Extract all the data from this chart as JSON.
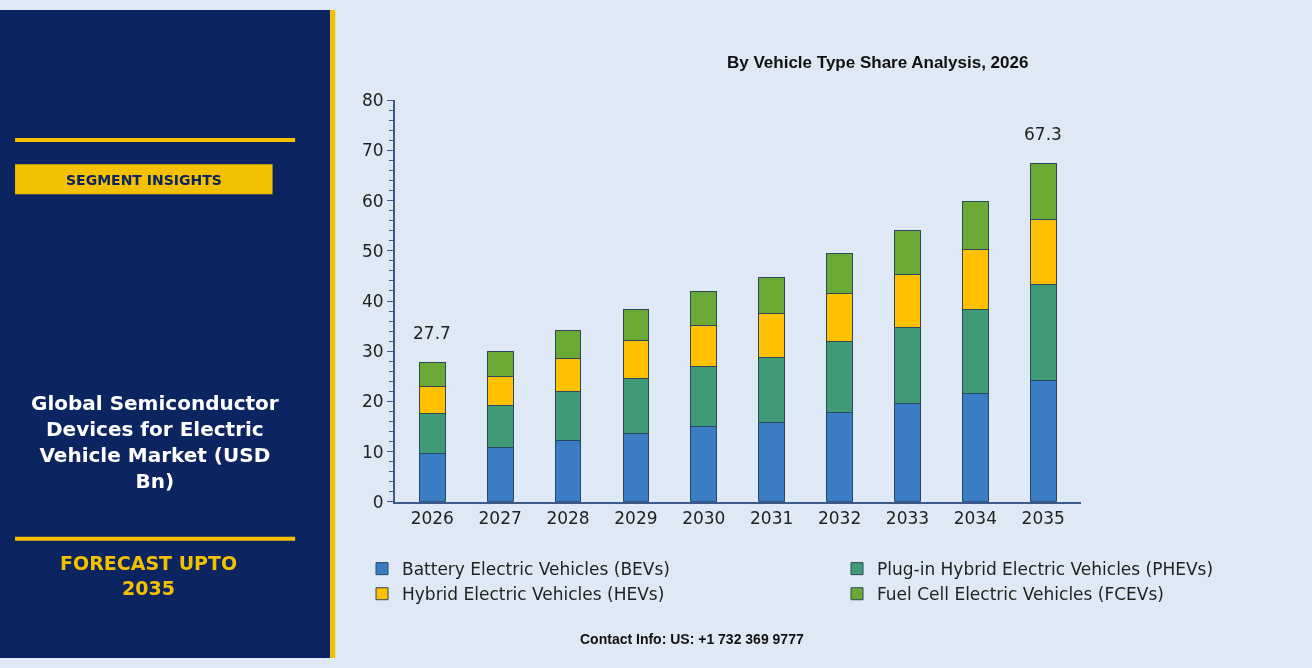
{
  "chart_data": {
    "type": "bar",
    "stacked": true,
    "title": "Global Semiconductor Devices for Electric Vehicle Market (USD Bn)",
    "subtitle": "By Vehicle Type Share Analysis, 2026",
    "annotations": [
      "SEGMENT INSIGHTS",
      "FORECAST UPTO 2035",
      "Contact Info: US: +1 732 369 9777"
    ],
    "categories": [
      "2026",
      "2027",
      "2028",
      "2029",
      "2030",
      "2031",
      "2032",
      "2033",
      "2034",
      "2035"
    ],
    "series": [
      {
        "name": "Battery Electric Vehicles (BEVs)",
        "color": "#3a7dc4",
        "values": [
          9.7,
          10.8,
          12.3,
          13.7,
          15.0,
          15.9,
          17.7,
          19.5,
          21.6,
          24.1
        ]
      },
      {
        "name": "Plug-in Hybrid Electric Vehicles (PHEVs)",
        "color": "#3f9b76",
        "values": [
          7.8,
          8.4,
          9.6,
          10.8,
          12.0,
          12.8,
          14.2,
          15.3,
          16.8,
          19.2
        ]
      },
      {
        "name": "Hybrid Electric Vehicles (HEVs)",
        "color": "#ffc000",
        "values": [
          5.4,
          5.8,
          6.6,
          7.6,
          8.2,
          8.8,
          9.5,
          10.4,
          11.8,
          13.0
        ]
      },
      {
        "name": "Fuel Cell Electric Vehicles (FCEVs)",
        "color": "#6aaa34",
        "values": [
          4.8,
          4.9,
          5.6,
          6.2,
          6.6,
          7.2,
          8.0,
          8.9,
          9.7,
          11.0
        ]
      }
    ],
    "totals": [
      "27.7",
      null,
      null,
      null,
      null,
      null,
      null,
      null,
      null,
      "67.3"
    ],
    "ylim": [
      0,
      80
    ],
    "yticks": [
      0,
      10,
      20,
      30,
      40,
      50,
      60,
      70,
      80
    ],
    "grid": false,
    "legend": "bottom"
  }
}
